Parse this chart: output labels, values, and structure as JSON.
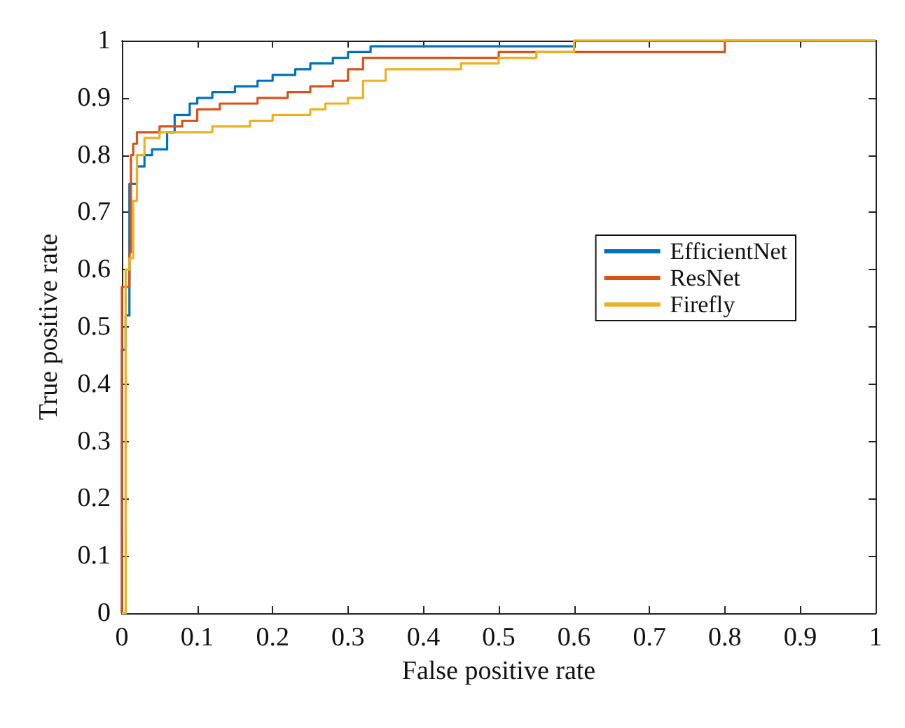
{
  "chart_data": {
    "type": "step",
    "xlabel": "False positive rate",
    "ylabel": "True positive rate",
    "xlim": [
      0,
      1
    ],
    "ylim": [
      0,
      1
    ],
    "xticks": [
      0,
      0.1,
      0.2,
      0.3,
      0.4,
      0.5,
      0.6,
      0.7,
      0.8,
      0.9,
      1
    ],
    "yticks": [
      0,
      0.1,
      0.2,
      0.3,
      0.4,
      0.5,
      0.6,
      0.7,
      0.8,
      0.9,
      1
    ],
    "grid": false,
    "legend": "right",
    "marker": "none",
    "line_style": "solid",
    "series": [
      {
        "name": "EfficientNet",
        "color": "#0072bd",
        "x": [
          0,
          0,
          0.005,
          0.01,
          0.02,
          0.03,
          0.04,
          0.06,
          0.07,
          0.09,
          0.1,
          0.12,
          0.15,
          0.18,
          0.2,
          0.23,
          0.25,
          0.28,
          0.3,
          0.33,
          0.6,
          1
        ],
        "values": [
          0,
          0.46,
          0.52,
          0.75,
          0.78,
          0.8,
          0.81,
          0.84,
          0.87,
          0.89,
          0.9,
          0.91,
          0.92,
          0.93,
          0.94,
          0.95,
          0.96,
          0.97,
          0.98,
          0.99,
          1,
          1
        ]
      },
      {
        "name": "ResNet",
        "color": "#d95319",
        "x": [
          0,
          0,
          0.01,
          0.012,
          0.015,
          0.02,
          0.05,
          0.08,
          0.1,
          0.13,
          0.18,
          0.22,
          0.25,
          0.28,
          0.3,
          0.32,
          0.5,
          0.8,
          1
        ],
        "values": [
          0,
          0.57,
          0.63,
          0.8,
          0.82,
          0.84,
          0.85,
          0.86,
          0.88,
          0.89,
          0.9,
          0.91,
          0.92,
          0.93,
          0.95,
          0.97,
          0.98,
          1,
          1
        ]
      },
      {
        "name": "Firefly",
        "color": "#edb120",
        "x": [
          0,
          0.005,
          0.01,
          0.015,
          0.02,
          0.03,
          0.05,
          0.12,
          0.17,
          0.2,
          0.25,
          0.27,
          0.3,
          0.32,
          0.35,
          0.45,
          0.5,
          0.55,
          0.6,
          1
        ],
        "values": [
          0,
          0.6,
          0.62,
          0.72,
          0.8,
          0.83,
          0.84,
          0.85,
          0.86,
          0.87,
          0.88,
          0.89,
          0.9,
          0.93,
          0.95,
          0.96,
          0.97,
          0.98,
          1,
          1
        ]
      }
    ]
  }
}
